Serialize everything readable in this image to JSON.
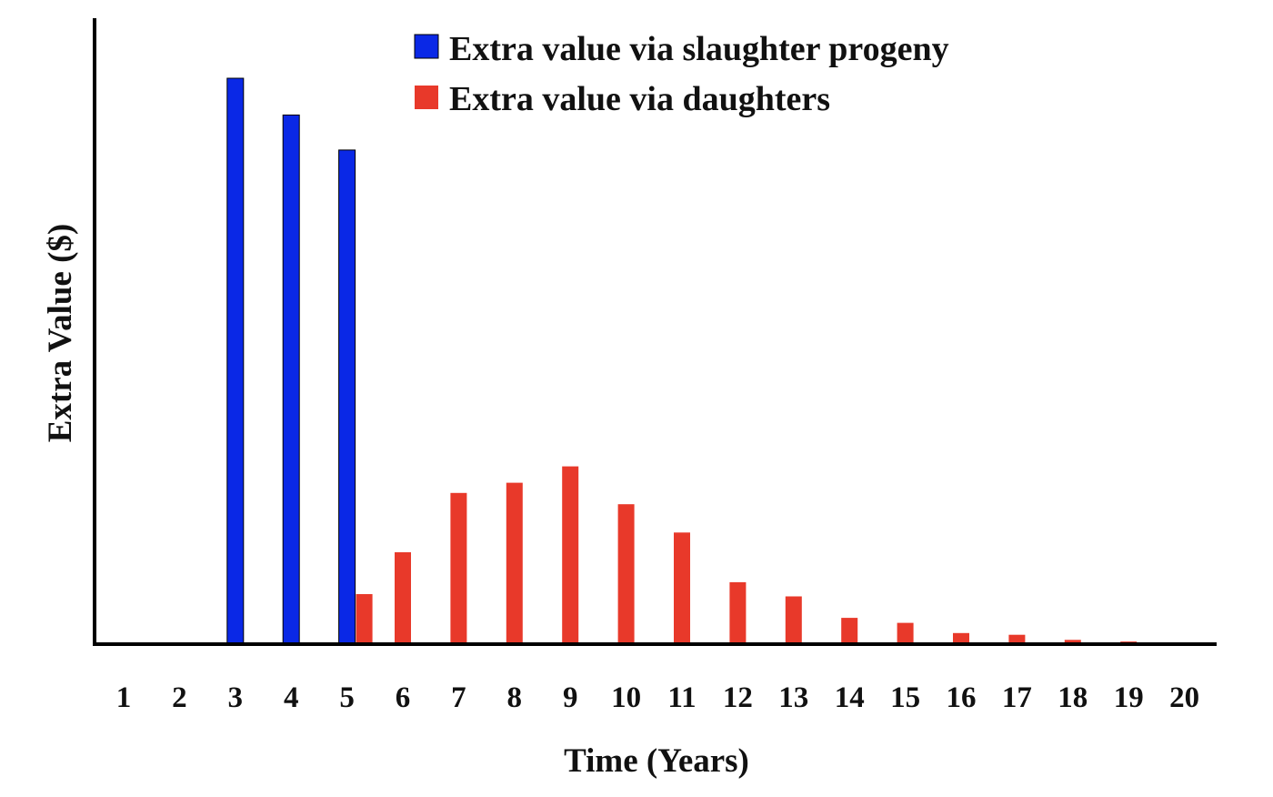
{
  "chart_data": {
    "type": "bar",
    "title": "",
    "xlabel": "Time (Years)",
    "ylabel": "Extra Value ($)",
    "categories": [
      "1",
      "2",
      "3",
      "4",
      "5",
      "6",
      "7",
      "8",
      "9",
      "10",
      "11",
      "12",
      "13",
      "14",
      "15",
      "16",
      "17",
      "18",
      "19",
      "20"
    ],
    "series": [
      {
        "name": "Extra value via slaughter progeny",
        "color": "#0a28e6",
        "values": [
          0,
          0,
          100,
          93.5,
          87.3,
          0,
          0,
          0,
          0,
          0,
          0,
          0,
          0,
          0,
          0,
          0,
          0,
          0,
          0,
          0
        ]
      },
      {
        "name": "Extra value via daughters",
        "color": "#e8392a",
        "values": [
          0,
          0,
          0,
          0,
          8.7,
          16.1,
          26.6,
          28.4,
          31.3,
          24.6,
          19.6,
          10.8,
          8.3,
          4.5,
          3.6,
          1.8,
          1.5,
          0.6,
          0.3,
          0
        ]
      }
    ],
    "ylim": [
      0,
      110
    ],
    "grid": false,
    "y_tick_labels_shown": false,
    "legend_position": "top"
  }
}
